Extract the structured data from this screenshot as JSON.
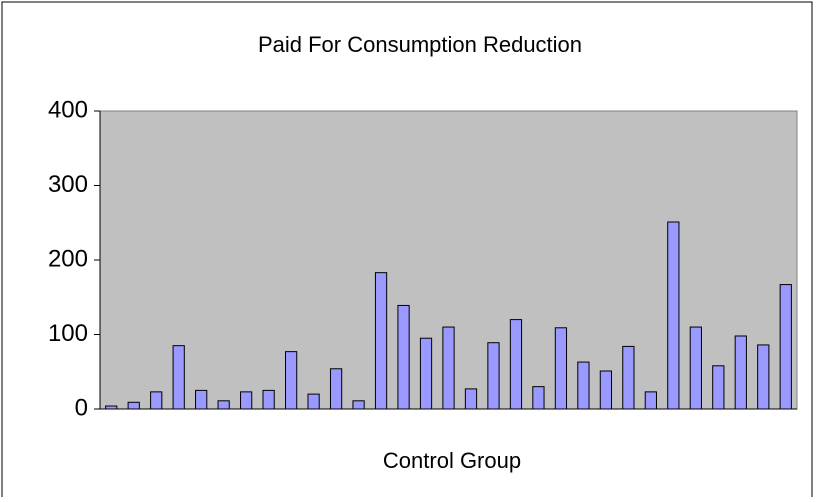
{
  "chart_data": {
    "type": "bar",
    "title": "Paid For Consumption Reduction",
    "x_label": "Control Group",
    "categories": [
      null,
      null,
      null,
      null,
      null,
      null,
      null,
      null,
      null,
      null,
      null,
      null,
      null,
      null,
      null,
      null,
      null,
      null,
      null,
      null,
      null,
      null,
      null,
      null,
      null,
      null,
      null,
      null,
      null,
      null,
      null
    ],
    "values": [
      4,
      9,
      23,
      85,
      25,
      11,
      23,
      25,
      77,
      20,
      54,
      11,
      183,
      139,
      95,
      110,
      27,
      89,
      120,
      30,
      109,
      63,
      51,
      84,
      23,
      251,
      110,
      58,
      98,
      86,
      167
    ],
    "color": "#9999ff",
    "plot_background": "#c0c0c0",
    "ylim": [
      0,
      400
    ],
    "yticks": [
      0,
      100,
      200,
      300,
      400
    ],
    "grid": false
  }
}
